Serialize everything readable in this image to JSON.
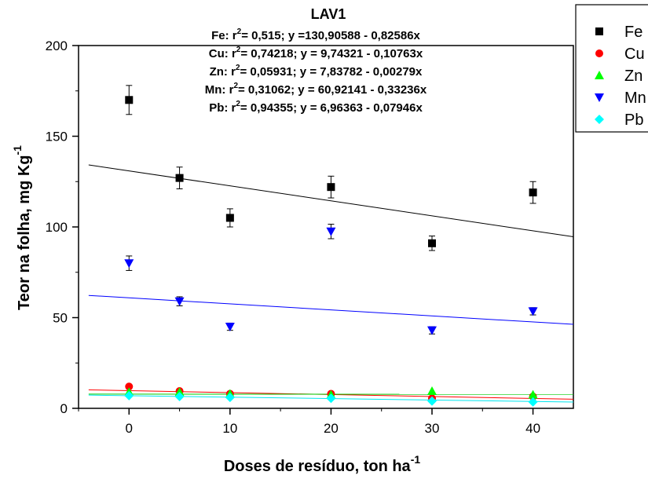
{
  "chart_data": {
    "type": "scatter",
    "title": "LAV1",
    "xlabel": "Doses de resíduo, ton ha",
    "xlabel_sup": "-1",
    "ylabel": "Teor na folha, mg Kg",
    "ylabel_sup": "-1",
    "xlim": [
      -5,
      44
    ],
    "ylim": [
      0,
      200
    ],
    "x_ticks": [
      0,
      10,
      20,
      30,
      40
    ],
    "y_ticks": [
      0,
      50,
      100,
      150,
      200
    ],
    "grid": false,
    "legend_position": "top-right",
    "equations": [
      {
        "prefix": "Fe: r",
        "sup": "2",
        "rest": "= 0,515; y =130,90588 - 0,82586x"
      },
      {
        "prefix": "Cu: r",
        "sup": "2",
        "rest": "= 0,74218; y = 9,74321 - 0,10763x"
      },
      {
        "prefix": "Zn: r",
        "sup": "2",
        "rest": "= 0,05931; y = 7,83782 - 0,00279x"
      },
      {
        "prefix": "Mn: r",
        "sup": "2",
        "rest": "= 0,31062; y = 60,92141 - 0,33236x"
      },
      {
        "prefix": "Pb: r",
        "sup": "2",
        "rest": "= 0,94355; y = 6,96363 - 0,07946x"
      }
    ],
    "series": [
      {
        "name": "Fe",
        "marker": "square",
        "color": "#000000",
        "line_color": "#000000",
        "x": [
          0,
          5,
          10,
          20,
          30,
          40
        ],
        "y": [
          170,
          127,
          105,
          122,
          91,
          119
        ],
        "err": [
          8,
          6,
          5,
          6,
          4,
          6
        ],
        "fit": {
          "intercept": 130.90588,
          "slope": -0.82586
        }
      },
      {
        "name": "Cu",
        "marker": "circle",
        "color": "#ff0000",
        "line_color": "#ff0000",
        "x": [
          0,
          5,
          10,
          20,
          30,
          40
        ],
        "y": [
          12,
          9.5,
          8,
          8,
          5.5,
          6.5
        ],
        "err": [
          0,
          0,
          0,
          0,
          0,
          0
        ],
        "fit": {
          "intercept": 9.74321,
          "slope": -0.10763
        }
      },
      {
        "name": "Zn",
        "marker": "triangle-up",
        "color": "#00ff00",
        "line_color": "#00cc00",
        "x": [
          0,
          5,
          10,
          20,
          30,
          40
        ],
        "y": [
          9,
          9,
          8,
          7.5,
          9.5,
          7.5
        ],
        "err": [
          0,
          0,
          0,
          0,
          0,
          0
        ],
        "fit": {
          "intercept": 7.83782,
          "slope": -0.00279
        }
      },
      {
        "name": "Mn",
        "marker": "triangle-down",
        "color": "#0000ff",
        "line_color": "#0000ff",
        "x": [
          0,
          5,
          10,
          20,
          30,
          40
        ],
        "y": [
          80,
          59,
          45,
          97.5,
          43,
          53.5
        ],
        "err": [
          4,
          2.5,
          2,
          4,
          2,
          2
        ],
        "fit": {
          "intercept": 60.92141,
          "slope": -0.33236
        }
      },
      {
        "name": "Pb",
        "marker": "diamond",
        "color": "#00ffff",
        "line_color": "#00e5ee",
        "x": [
          0,
          5,
          10,
          20,
          30,
          40
        ],
        "y": [
          7,
          6.5,
          6,
          5.5,
          4,
          3.5
        ],
        "err": [
          0,
          0,
          0,
          0,
          0,
          0
        ],
        "fit": {
          "intercept": 6.96363,
          "slope": -0.07946
        }
      }
    ]
  }
}
